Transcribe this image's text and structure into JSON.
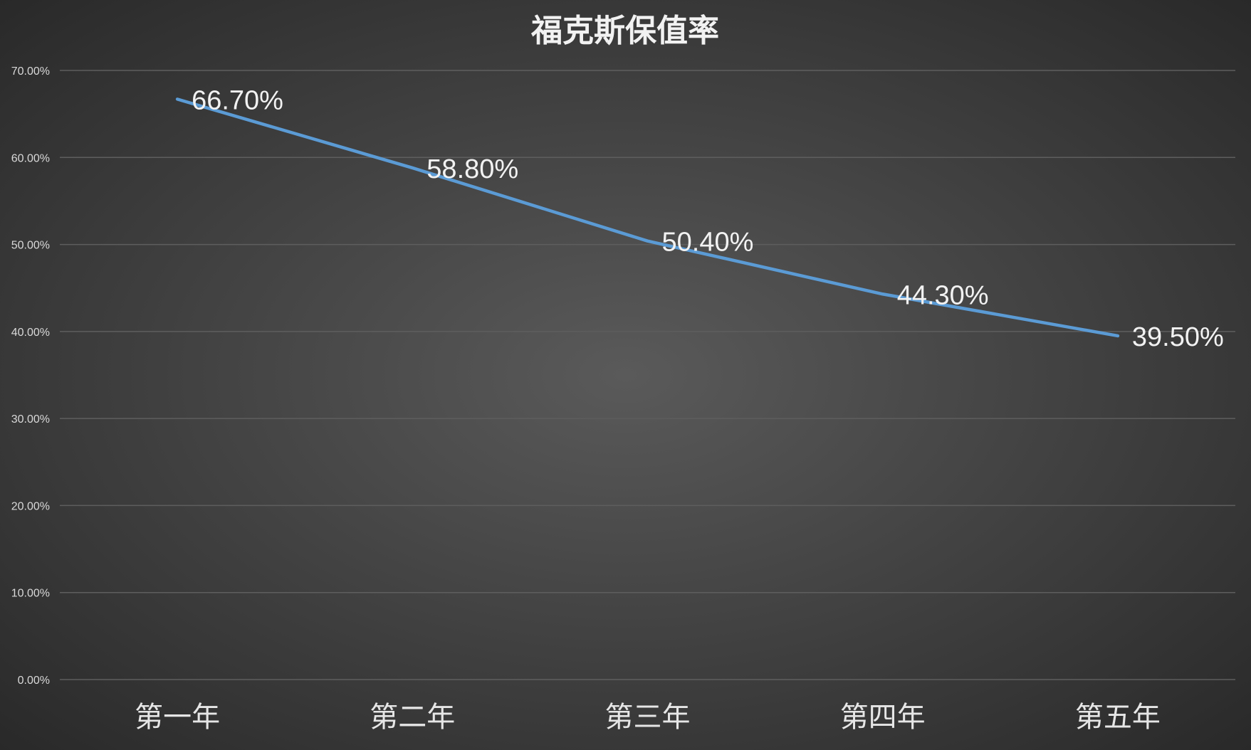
{
  "chart_data": {
    "type": "line",
    "title": "福克斯保值率",
    "xlabel": "",
    "ylabel": "",
    "categories": [
      "第一年",
      "第二年",
      "第三年",
      "第四年",
      "第五年"
    ],
    "series": [
      {
        "values": [
          66.7,
          58.8,
          50.4,
          44.3,
          39.5
        ],
        "data_labels": [
          "66.70%",
          "58.80%",
          "50.40%",
          "44.30%",
          "39.50%"
        ],
        "color": "#5b9bd5"
      }
    ],
    "ylim": [
      0,
      70
    ],
    "yticks": [
      0,
      10,
      20,
      30,
      40,
      50,
      60,
      70
    ],
    "ytick_labels": [
      "0.00%",
      "10.00%",
      "20.00%",
      "30.00%",
      "40.00%",
      "50.00%",
      "60.00%",
      "70.00%"
    ],
    "grid": true,
    "legend": "none",
    "background": "#3a3a3a",
    "gridline_color": "#5e5e5e",
    "text_color": "#f2f2f2"
  }
}
